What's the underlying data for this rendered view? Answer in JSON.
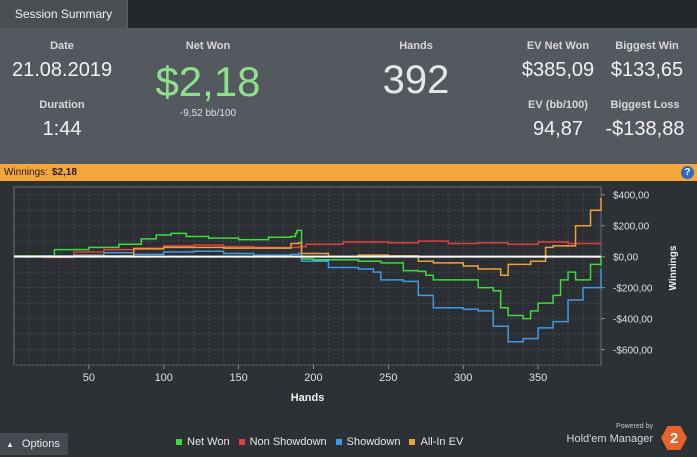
{
  "tabs": {
    "active": "Session Summary"
  },
  "summary": {
    "date_label": "Date",
    "date_value": "21.08.2019",
    "duration_label": "Duration",
    "duration_value": "1:44",
    "net_won_label": "Net Won",
    "net_won_value": "$2,18",
    "net_won_sub": "-9,52 bb/100",
    "hands_label": "Hands",
    "hands_value": "392",
    "ev_net_won_label": "EV Net Won",
    "ev_net_won_value": "$385,09",
    "ev_bb_label": "EV (bb/100)",
    "ev_bb_value": "94,87",
    "biggest_win_label": "Biggest Win",
    "biggest_win_value": "$133,65",
    "biggest_loss_label": "Biggest Loss",
    "biggest_loss_value": "-$138,88"
  },
  "winnings_bar": {
    "label": "Winnings:",
    "value": "$2,18",
    "help": "?"
  },
  "footer": {
    "options_label": "Options",
    "powered_by": "Powered by",
    "brand_name": "Hold'em Manager",
    "brand_logo": "2"
  },
  "colors": {
    "net_won": "#3ddc3d",
    "non_showdown": "#e0413b",
    "showdown": "#3f9be6",
    "allin_ev": "#f0a03c",
    "header_bar": "#f5a63a"
  },
  "chart_data": {
    "type": "line",
    "xlabel": "Hands",
    "ylabel": "Winnings",
    "xlim": [
      0,
      392
    ],
    "ylim": [
      -700,
      450
    ],
    "x_ticks": [
      50,
      100,
      150,
      200,
      250,
      300,
      350
    ],
    "y_ticks": [
      400,
      200,
      0,
      -200,
      -400,
      -600
    ],
    "y_tick_labels": [
      "$400,00",
      "$200,00",
      "$0,00",
      "-$200,00",
      "-$400,00",
      "-$600,00"
    ],
    "grid": true,
    "series": [
      {
        "name": "Net Won",
        "color": "#3ddc3d",
        "x": [
          0,
          25,
          27,
          50,
          70,
          85,
          95,
          105,
          115,
          130,
          150,
          170,
          185,
          188,
          189,
          192,
          200,
          230,
          245,
          260,
          270,
          275,
          280,
          295,
          310,
          320,
          325,
          330,
          340,
          345,
          350,
          360,
          365,
          370,
          375,
          385,
          392
        ],
        "y": [
          5,
          0,
          45,
          60,
          80,
          115,
          140,
          150,
          130,
          120,
          110,
          125,
          130,
          150,
          170,
          -15,
          -20,
          -30,
          -40,
          -90,
          -95,
          -120,
          -150,
          -150,
          -200,
          -220,
          -330,
          -380,
          -400,
          -350,
          -300,
          -250,
          -150,
          -100,
          -150,
          -50,
          0
        ]
      },
      {
        "name": "Non Showdown",
        "color": "#e0413b",
        "x": [
          0,
          20,
          40,
          60,
          80,
          100,
          120,
          140,
          160,
          190,
          195,
          220,
          250,
          270,
          290,
          310,
          330,
          350,
          370,
          392
        ],
        "y": [
          0,
          -5,
          30,
          45,
          55,
          70,
          75,
          65,
          60,
          65,
          80,
          95,
          90,
          100,
          85,
          90,
          80,
          95,
          85,
          90
        ]
      },
      {
        "name": "Showdown",
        "color": "#3f9be6",
        "x": [
          0,
          20,
          40,
          60,
          80,
          100,
          120,
          140,
          160,
          185,
          190,
          192,
          210,
          230,
          240,
          245,
          260,
          270,
          280,
          300,
          310,
          320,
          330,
          340,
          350,
          360,
          370,
          380,
          392
        ],
        "y": [
          0,
          5,
          10,
          25,
          15,
          30,
          35,
          20,
          10,
          15,
          20,
          -30,
          -70,
          -80,
          -100,
          -150,
          -160,
          -250,
          -330,
          -340,
          -350,
          -450,
          -550,
          -530,
          -460,
          -420,
          -280,
          -200,
          -80
        ]
      },
      {
        "name": "All-In EV",
        "color": "#f0a03c",
        "x": [
          0,
          40,
          80,
          100,
          140,
          185,
          190,
          192,
          210,
          230,
          250,
          270,
          280,
          300,
          310,
          325,
          330,
          345,
          355,
          360,
          375,
          385,
          392
        ],
        "y": [
          0,
          5,
          50,
          60,
          55,
          85,
          90,
          20,
          0,
          10,
          5,
          -30,
          -40,
          -60,
          -80,
          -120,
          -50,
          -30,
          60,
          70,
          200,
          300,
          380
        ]
      }
    ]
  }
}
